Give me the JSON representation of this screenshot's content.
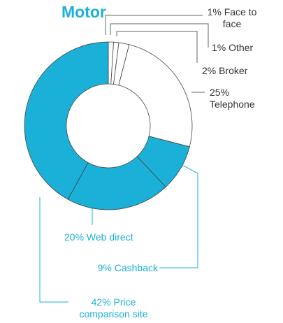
{
  "chart_data": {
    "type": "donut",
    "title": "Motor",
    "categories": [
      "Face to face",
      "Other",
      "Broker",
      "Telephone",
      "Cashback",
      "Web direct",
      "Price comparison site"
    ],
    "values": [
      1,
      1,
      2,
      25,
      9,
      20,
      42
    ],
    "value_labels": [
      "1%",
      "1%",
      "2%",
      "25%",
      "9%",
      "20%",
      "42%"
    ],
    "colors": [
      "#ffffff",
      "#ffffff",
      "#ffffff",
      "#ffffff",
      "#1bb0d8",
      "#1bb0d8",
      "#1bb0d8"
    ]
  }
}
